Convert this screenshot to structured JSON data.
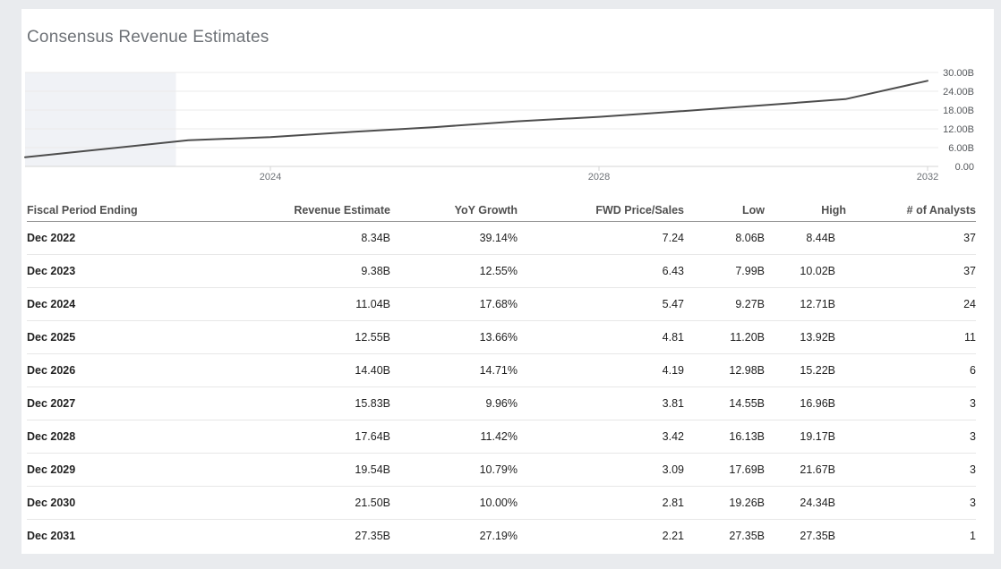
{
  "page": {
    "title": "Consensus Revenue Estimates"
  },
  "colors": {
    "background": "#e9ebee",
    "card": "#ffffff",
    "line": "#4d4d4d",
    "grid": "#ebebeb",
    "grid_shaded": "#e3e5ea",
    "axis": "#d6d6d6",
    "shading": "#f0f2f6",
    "title_text": "#6e7277",
    "y_label_text": "#55585c",
    "x_label_text": "#6c7075"
  },
  "chart_data": {
    "type": "line",
    "title": "Consensus Revenue Estimates",
    "grid": true,
    "legend": false,
    "x_axis": {
      "ticks": [
        2024,
        2028,
        2032
      ],
      "tick_labels": [
        "2024",
        "2028",
        "2032"
      ],
      "range_years": [
        2021.0,
        2032.1
      ]
    },
    "y_axis": {
      "ticks_billions": [
        0,
        6,
        12,
        18,
        24,
        30
      ],
      "tick_labels": [
        "0.00",
        "6.00B",
        "12.00B",
        "18.00B",
        "24.00B",
        "30.00B"
      ],
      "ylim_billions": [
        0,
        30
      ]
    },
    "shaded_region_end_year": 2022.85,
    "series": [
      {
        "name": "Consensus Revenue Estimate",
        "points_year_valueB": [
          [
            2021.0,
            2.9
          ],
          [
            2023.0,
            8.34
          ],
          [
            2024.0,
            9.38
          ],
          [
            2025.0,
            11.04
          ],
          [
            2026.0,
            12.55
          ],
          [
            2027.0,
            14.4
          ],
          [
            2028.0,
            15.83
          ],
          [
            2029.0,
            17.64
          ],
          [
            2030.0,
            19.54
          ],
          [
            2031.0,
            21.5
          ],
          [
            2032.0,
            27.35
          ]
        ]
      }
    ]
  },
  "table": {
    "columns": [
      "Fiscal Period Ending",
      "Revenue Estimate",
      "YoY Growth",
      "FWD Price/Sales",
      "Low",
      "High",
      "# of Analysts"
    ],
    "rows": [
      [
        "Dec 2022",
        "8.34B",
        "39.14%",
        "7.24",
        "8.06B",
        "8.44B",
        "37"
      ],
      [
        "Dec 2023",
        "9.38B",
        "12.55%",
        "6.43",
        "7.99B",
        "10.02B",
        "37"
      ],
      [
        "Dec 2024",
        "11.04B",
        "17.68%",
        "5.47",
        "9.27B",
        "12.71B",
        "24"
      ],
      [
        "Dec 2025",
        "12.55B",
        "13.66%",
        "4.81",
        "11.20B",
        "13.92B",
        "11"
      ],
      [
        "Dec 2026",
        "14.40B",
        "14.71%",
        "4.19",
        "12.98B",
        "15.22B",
        "6"
      ],
      [
        "Dec 2027",
        "15.83B",
        "9.96%",
        "3.81",
        "14.55B",
        "16.96B",
        "3"
      ],
      [
        "Dec 2028",
        "17.64B",
        "11.42%",
        "3.42",
        "16.13B",
        "19.17B",
        "3"
      ],
      [
        "Dec 2029",
        "19.54B",
        "10.79%",
        "3.09",
        "17.69B",
        "21.67B",
        "3"
      ],
      [
        "Dec 2030",
        "21.50B",
        "10.00%",
        "2.81",
        "19.26B",
        "24.34B",
        "3"
      ],
      [
        "Dec 2031",
        "27.35B",
        "27.19%",
        "2.21",
        "27.35B",
        "27.35B",
        "1"
      ]
    ]
  }
}
